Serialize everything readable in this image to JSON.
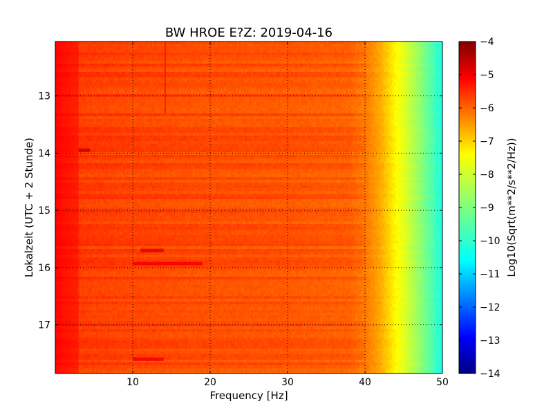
{
  "chart_data": {
    "type": "heatmap",
    "title": "BW HROE E?Z: 2019-04-16",
    "xlabel": "Frequency [Hz]",
    "ylabel": "Lokalzeit (UTC + 2 Stunde)",
    "xlim": [
      0,
      50
    ],
    "ylim": [
      17.85,
      12.05
    ],
    "x_ticks": [
      10,
      20,
      30,
      40,
      50
    ],
    "y_ticks": [
      13,
      14,
      15,
      16,
      17
    ],
    "grid": true,
    "colormap": "jet",
    "colorbar": {
      "label": "Log10(Sqrt(m**2/s**2/Hz))",
      "range": [
        -14,
        -4
      ],
      "ticks": [
        -4,
        -5,
        -6,
        -7,
        -8,
        -9,
        -10,
        -11,
        -12,
        -13,
        -14
      ]
    },
    "spectral_profile": {
      "frequency_hz": [
        0,
        1,
        3,
        10,
        20,
        30,
        38,
        40,
        42,
        43,
        44,
        45,
        46,
        47,
        48,
        49,
        50
      ],
      "log10_amplitude": [
        -5.2,
        -5.5,
        -5.8,
        -5.9,
        -6.0,
        -6.05,
        -6.15,
        -6.4,
        -6.9,
        -7.3,
        -7.7,
        -8.0,
        -8.4,
        -8.8,
        -9.2,
        -9.6,
        -10.0
      ]
    },
    "features": [
      {
        "label": "low-frequency band",
        "freq_range_hz": [
          0,
          3
        ],
        "log10_amplitude": -5.3
      },
      {
        "label": "vertical line",
        "freq_hz": 14.2,
        "time_range": [
          12.05,
          13.3
        ],
        "log10_amplitude": -5.5
      },
      {
        "label": "strong event",
        "freq_range_hz": [
          3,
          4.5
        ],
        "time": 13.95,
        "log10_amplitude": -4.8
      },
      {
        "label": "strong event",
        "freq_range_hz": [
          11,
          14
        ],
        "time": 15.7,
        "log10_amplitude": -5.0
      },
      {
        "label": "strong event",
        "freq_range_hz": [
          10,
          19
        ],
        "time": 15.93,
        "log10_amplitude": -5.2
      },
      {
        "label": "strong event",
        "freq_range_hz": [
          10,
          14
        ],
        "time": 17.6,
        "log10_amplitude": -5.2
      }
    ]
  }
}
